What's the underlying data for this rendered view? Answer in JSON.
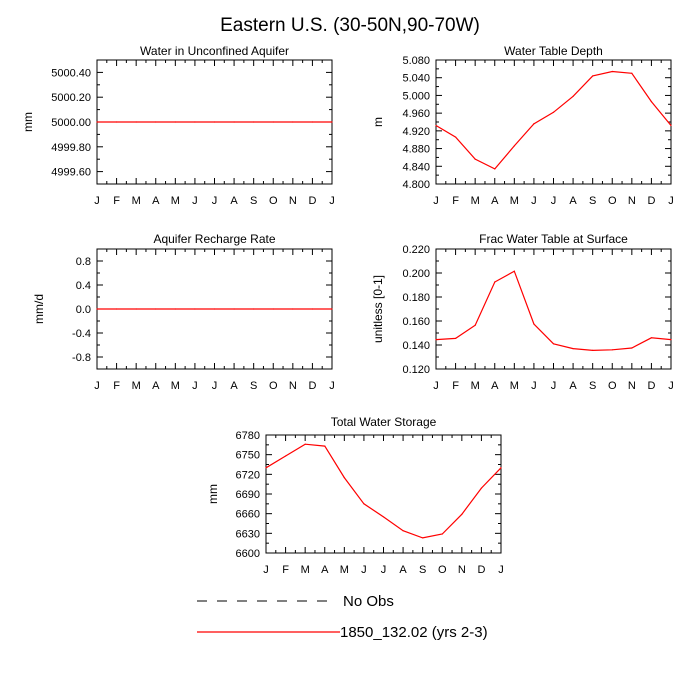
{
  "figure_title": "Eastern U.S. (30-50N,90-70W)",
  "legend": [
    {
      "label": "No Obs",
      "color": "#000000",
      "dashed": true
    },
    {
      "label": "1850_132.02 (yrs 2-3)",
      "color": "#ff0000",
      "dashed": false
    }
  ],
  "chart_data": [
    {
      "type": "line",
      "title": "Water in Unconfined Aquifer",
      "ylabel": "mm",
      "x": [
        "J",
        "F",
        "M",
        "A",
        "M",
        "J",
        "J",
        "A",
        "S",
        "O",
        "N",
        "D",
        "J"
      ],
      "ylim": [
        4999.5,
        5000.5
      ],
      "yticks": [
        4999.6,
        4999.8,
        5000.0,
        5000.2,
        5000.4
      ],
      "ytick_labels": [
        "4999.60",
        "4999.80",
        "5000.00",
        "5000.20",
        "5000.40"
      ],
      "series": [
        {
          "color": "#ff0000",
          "values": [
            5000,
            5000,
            5000,
            5000,
            5000,
            5000,
            5000,
            5000,
            5000,
            5000,
            5000,
            5000,
            5000
          ]
        }
      ]
    },
    {
      "type": "line",
      "title": "Water Table Depth",
      "ylabel": "m",
      "x": [
        "J",
        "F",
        "M",
        "A",
        "M",
        "J",
        "J",
        "A",
        "S",
        "O",
        "N",
        "D",
        "J"
      ],
      "ylim": [
        4.8,
        5.08
      ],
      "yticks": [
        4.8,
        4.84,
        4.88,
        4.92,
        4.96,
        5.0,
        5.04,
        5.08
      ],
      "ytick_labels": [
        "4.800",
        "4.840",
        "4.880",
        "4.920",
        "4.960",
        "5.000",
        "5.040",
        "5.080"
      ],
      "series": [
        {
          "color": "#ff0000",
          "values": [
            4.932,
            4.906,
            4.856,
            4.834,
            4.886,
            4.936,
            4.962,
            4.998,
            5.044,
            5.054,
            5.05,
            4.986,
            4.932
          ]
        }
      ]
    },
    {
      "type": "line",
      "title": "Aquifer Recharge Rate",
      "ylabel": "mm/d",
      "x": [
        "J",
        "F",
        "M",
        "A",
        "M",
        "J",
        "J",
        "A",
        "S",
        "O",
        "N",
        "D",
        "J"
      ],
      "ylim": [
        -1.0,
        1.0
      ],
      "yticks": [
        -0.8,
        -0.4,
        0.0,
        0.4,
        0.8
      ],
      "ytick_labels": [
        "-0.8",
        "-0.4",
        "0.0",
        "0.4",
        "0.8"
      ],
      "series": [
        {
          "color": "#ff0000",
          "values": [
            0,
            0,
            0,
            0,
            0,
            0,
            0,
            0,
            0,
            0,
            0,
            0,
            0
          ]
        }
      ]
    },
    {
      "type": "line",
      "title": "Frac Water Table at Surface",
      "ylabel": "unitless [0-1]",
      "x": [
        "J",
        "F",
        "M",
        "A",
        "M",
        "J",
        "J",
        "A",
        "S",
        "O",
        "N",
        "D",
        "J"
      ],
      "ylim": [
        0.12,
        0.22
      ],
      "yticks": [
        0.12,
        0.14,
        0.16,
        0.18,
        0.2,
        0.22
      ],
      "ytick_labels": [
        "0.120",
        "0.140",
        "0.160",
        "0.180",
        "0.200",
        "0.220"
      ],
      "series": [
        {
          "color": "#ff0000",
          "values": [
            0.1445,
            0.1455,
            0.1565,
            0.1925,
            0.2015,
            0.1575,
            0.141,
            0.137,
            0.1355,
            0.136,
            0.1375,
            0.146,
            0.1445
          ]
        }
      ]
    },
    {
      "type": "line",
      "title": "Total Water Storage",
      "ylabel": "mm",
      "x": [
        "J",
        "F",
        "M",
        "A",
        "M",
        "J",
        "J",
        "A",
        "S",
        "O",
        "N",
        "D",
        "J"
      ],
      "ylim": [
        6600,
        6780
      ],
      "yticks": [
        6600,
        6630,
        6660,
        6690,
        6720,
        6750,
        6780
      ],
      "ytick_labels": [
        "6600",
        "6630",
        "6660",
        "6690",
        "6720",
        "6750",
        "6780"
      ],
      "series": [
        {
          "color": "#ff0000",
          "values": [
            6730,
            6748,
            6766,
            6763,
            6715,
            6675,
            6655,
            6634,
            6623,
            6629,
            6659,
            6699,
            6730
          ]
        }
      ]
    }
  ]
}
